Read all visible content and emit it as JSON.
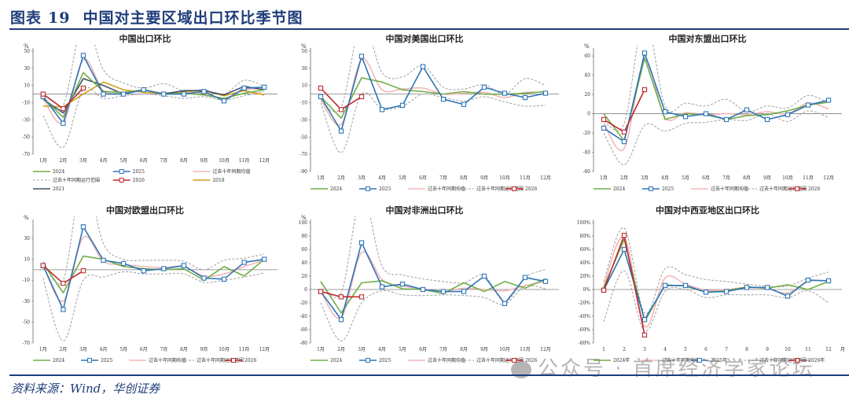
{
  "figure": {
    "label": "图表",
    "number": "19",
    "title": "中国对主要区域出口环比季节图",
    "source": "资料来源：Wind，华创证券",
    "watermark": "公众号 · 首席经济学家论坛"
  },
  "colors": {
    "y2024": "#70ad47",
    "y2025": "#2e75b6",
    "avg10": "#f4b6b6",
    "range10": "#a6a6a6",
    "y2026": "#c0282d",
    "y2018": "#d4a017",
    "y2021": "#44546a",
    "title_blue": "#1f3d7a"
  },
  "chart_data": [
    {
      "type": "line",
      "title": "中国出口环比",
      "unit": "%",
      "xlabel": "",
      "ylabel": "%",
      "categories": [
        "1月",
        "2月",
        "3月",
        "4月",
        "5月",
        "6月",
        "7月",
        "8月",
        "9月",
        "10月",
        "11月",
        "12月"
      ],
      "ylim": [
        -70,
        50
      ],
      "yticks": [
        50,
        30,
        10,
        -10,
        -30,
        -50,
        -70
      ],
      "ytick_labels": [
        "50",
        "30",
        "10",
        "-10",
        "-30",
        "-50",
        "-70"
      ],
      "legend_cols": 3,
      "series": [
        {
          "name": "2024",
          "key": "y2024",
          "marker": false,
          "values": [
            -5,
            -27,
            25,
            3,
            2,
            5,
            0,
            1,
            -1,
            -5,
            1,
            5
          ]
        },
        {
          "name": "2025",
          "key": "y2025",
          "marker": true,
          "values": [
            -3,
            -34,
            45,
            0,
            0,
            5,
            0,
            0,
            3,
            -8,
            7,
            8
          ]
        },
        {
          "name": "过去十年同期均值",
          "key": "avg10",
          "marker": false,
          "smooth": true,
          "values": [
            -5,
            -33,
            40,
            4,
            2,
            4,
            1,
            2,
            1,
            -5,
            5,
            6
          ]
        },
        {
          "name": "过去十年同期运行范围",
          "key": "range10",
          "dashed": true,
          "smooth": true,
          "upper": [
            -3,
            -13,
            85,
            28,
            13,
            7,
            12,
            4,
            5,
            0,
            16,
            9
          ],
          "lower": [
            -25,
            -62,
            5,
            -5,
            -2,
            0,
            -2,
            -5,
            -3,
            -7,
            -2,
            3
          ]
        },
        {
          "name": "2026",
          "key": "y2026",
          "marker": true,
          "values": [
            0,
            -17,
            7
          ]
        },
        {
          "name": "2018",
          "key": "y2018",
          "marker": false,
          "values": [
            -14,
            -15,
            0,
            14,
            5,
            2,
            1,
            3,
            4,
            -2,
            4,
            -1
          ]
        },
        {
          "name": "2021",
          "key": "y2021",
          "marker": false,
          "values": [
            -6,
            -22,
            18,
            10,
            0,
            5,
            0,
            4,
            4,
            -1,
            9,
            5
          ]
        }
      ]
    },
    {
      "type": "line",
      "title": "中国对美国出口环比",
      "unit": "%",
      "xlabel": "",
      "ylabel": "%",
      "categories": [
        "1月",
        "2月",
        "3月",
        "4月",
        "5月",
        "6月",
        "7月",
        "8月",
        "9月",
        "10月",
        "11月",
        "12月"
      ],
      "ylim": [
        -90,
        50
      ],
      "yticks": [
        50,
        30,
        10,
        -10,
        -30,
        -50,
        -70,
        -90
      ],
      "ytick_labels": [
        "50",
        "30",
        "10",
        "-10",
        "-30",
        "-50",
        "-70",
        "-90"
      ],
      "legend_cols": 5,
      "series": [
        {
          "name": "2024",
          "key": "y2024",
          "marker": false,
          "values": [
            -3,
            -28,
            19,
            14,
            5,
            3,
            0,
            3,
            0,
            0,
            1,
            3
          ]
        },
        {
          "name": "2025",
          "key": "y2025",
          "marker": true,
          "values": [
            -3,
            -43,
            44,
            -18,
            -13,
            32,
            -6,
            -12,
            8,
            1,
            -4,
            1
          ]
        },
        {
          "name": "过去十年同期均值",
          "key": "avg10",
          "marker": false,
          "smooth": true,
          "values": [
            -6,
            -35,
            40,
            5,
            6,
            7,
            0,
            1,
            2,
            -4,
            2,
            2
          ]
        },
        {
          "name": "过去十年同期运行范围",
          "key": "range10",
          "dashed": true,
          "smooth": true,
          "upper": [
            -8,
            -15,
            85,
            25,
            20,
            33,
            8,
            6,
            11,
            0,
            18,
            10
          ],
          "lower": [
            -10,
            -68,
            0,
            -17,
            -14,
            0,
            -4,
            -8,
            -3,
            -9,
            -14,
            -13
          ]
        },
        {
          "name": "2026",
          "key": "y2026",
          "marker": true,
          "values": [
            7,
            -18,
            -3
          ]
        }
      ]
    },
    {
      "type": "line",
      "title": "中国对东盟出口环比",
      "unit": "%",
      "xlabel": "",
      "ylabel": "%",
      "categories": [
        "1月",
        "2月",
        "3月",
        "4月",
        "5月",
        "6月",
        "7月",
        "8月",
        "9月",
        "10月",
        "11月",
        "12月"
      ],
      "ylim": [
        -60,
        65
      ],
      "yticks": [
        60,
        40,
        20,
        0,
        -20,
        -40,
        -60
      ],
      "ytick_labels": [
        "60",
        "40",
        "20",
        "0",
        "-20",
        "-40",
        "-60"
      ],
      "legend_cols": 5,
      "series": [
        {
          "name": "2024",
          "key": "y2024",
          "marker": false,
          "values": [
            0,
            -28,
            58,
            -6,
            0,
            -1,
            -6,
            -2,
            -1,
            3,
            9,
            12
          ]
        },
        {
          "name": "2025",
          "key": "y2025",
          "marker": true,
          "values": [
            -15,
            -29,
            63,
            2,
            -3,
            0,
            -6,
            4,
            -6,
            -1,
            9,
            14
          ]
        },
        {
          "name": "过去十年同期均值",
          "key": "avg10",
          "marker": false,
          "smooth": true,
          "values": [
            -10,
            -36,
            55,
            -4,
            1,
            -1,
            0,
            -1,
            2,
            0,
            11,
            5
          ]
        },
        {
          "name": "过去十年同期运行范围",
          "key": "range10",
          "dashed": true,
          "smooth": true,
          "upper": [
            -8,
            -10,
            100,
            8,
            11,
            8,
            15,
            2,
            8,
            6,
            19,
            11
          ],
          "lower": [
            -20,
            -53,
            -12,
            -18,
            -10,
            -9,
            -6,
            -7,
            0,
            -8,
            3,
            -4
          ]
        },
        {
          "name": "2026",
          "key": "y2026",
          "marker": true,
          "values": [
            -6,
            -19,
            25
          ]
        }
      ]
    },
    {
      "type": "line",
      "title": "中国对欧盟出口环比",
      "unit": "%",
      "xlabel": "",
      "ylabel": "%",
      "categories": [
        "1月",
        "2月",
        "3月",
        "4月",
        "5月",
        "6月",
        "7月",
        "8月",
        "9月",
        "10月",
        "11月",
        "12月"
      ],
      "ylim": [
        -70,
        45
      ],
      "yticks": [
        30,
        10,
        -10,
        -30,
        -50,
        -70
      ],
      "ytick_labels": [
        "30",
        "10",
        "-10",
        "-30",
        "-50",
        "-70"
      ],
      "legend_cols": 5,
      "series": [
        {
          "name": "2024",
          "key": "y2024",
          "marker": false,
          "values": [
            6,
            -22,
            13,
            10,
            3,
            1,
            0,
            1,
            -10,
            3,
            -6,
            10
          ]
        },
        {
          "name": "2025",
          "key": "y2025",
          "marker": true,
          "values": [
            4,
            -38,
            41,
            9,
            6,
            -1,
            1,
            4,
            -8,
            -9,
            7,
            10
          ]
        },
        {
          "name": "过去十年同期均值",
          "key": "avg10",
          "marker": false,
          "smooth": true,
          "values": [
            5,
            -30,
            31,
            8,
            5,
            3,
            2,
            3,
            -6,
            -4,
            3,
            9
          ]
        },
        {
          "name": "过去十年同期运行范围",
          "key": "range10",
          "dashed": true,
          "smooth": true,
          "upper": [
            8,
            -10,
            90,
            25,
            10,
            9,
            9,
            8,
            0,
            9,
            11,
            15
          ],
          "lower": [
            -8,
            -68,
            -10,
            -7,
            -2,
            -4,
            -4,
            -4,
            -12,
            -10,
            -7,
            -3
          ]
        },
        {
          "name": "2026",
          "key": "y2026",
          "marker": true,
          "values": [
            4,
            -13,
            -1
          ]
        }
      ]
    },
    {
      "type": "line",
      "title": "中国对非洲出口环比",
      "unit": "%",
      "xlabel": "",
      "ylabel": "%",
      "categories": [
        "1月",
        "2月",
        "3月",
        "4月",
        "5月",
        "6月",
        "7月",
        "8月",
        "9月",
        "10月",
        "11月",
        "12月"
      ],
      "ylim": [
        -80,
        100
      ],
      "yticks": [
        100,
        80,
        60,
        40,
        20,
        0,
        -20,
        -40,
        -60,
        -80
      ],
      "ytick_labels": [
        "100",
        "80",
        "60",
        "40",
        "20",
        "0",
        "-20",
        "-40",
        "-60",
        "-80"
      ],
      "legend_cols": 5,
      "series": [
        {
          "name": "2024",
          "key": "y2024",
          "marker": false,
          "values": [
            12,
            -35,
            10,
            13,
            1,
            0,
            -6,
            10,
            -3,
            12,
            2,
            16
          ]
        },
        {
          "name": "2025",
          "key": "y2025",
          "marker": true,
          "values": [
            -3,
            -45,
            70,
            4,
            8,
            0,
            -3,
            -3,
            20,
            -21,
            18,
            12
          ]
        },
        {
          "name": "过去十年同期均值",
          "key": "avg10",
          "marker": false,
          "smooth": true,
          "values": [
            -3,
            -42,
            55,
            15,
            5,
            1,
            -3,
            2,
            0,
            -2,
            6,
            12
          ]
        },
        {
          "name": "过去十年同期运行范围",
          "key": "range10",
          "dashed": true,
          "smooth": true,
          "upper": [
            10,
            -5,
            140,
            35,
            22,
            16,
            12,
            10,
            21,
            -18,
            18,
            30
          ],
          "lower": [
            -20,
            -77,
            -20,
            -2,
            -8,
            -9,
            -8,
            -9,
            -12,
            -22,
            5,
            1
          ]
        },
        {
          "name": "2026",
          "key": "y2026",
          "marker": true,
          "values": [
            -3,
            -11,
            -11
          ]
        }
      ]
    },
    {
      "type": "line",
      "title": "中国对中西亚地区出口环比",
      "unit": "%",
      "xlabel": "月",
      "ylabel": "",
      "categories": [
        "1",
        "2",
        "3",
        "4",
        "5",
        "6",
        "7",
        "8",
        "9",
        "10",
        "11",
        "12"
      ],
      "ylim": [
        -80,
        100
      ],
      "yticks": [
        100,
        80,
        60,
        40,
        20,
        0,
        -20,
        -40,
        -60,
        -80
      ],
      "ytick_labels": [
        "100%",
        "80%",
        "60%",
        "40%",
        "20%",
        "0%",
        "-20%",
        "-40%",
        "-60%",
        "-80%"
      ],
      "legend_cols": 5,
      "series": [
        {
          "name": "2024年",
          "key": "y2024",
          "marker": false,
          "values": [
            3,
            75,
            -48,
            7,
            5,
            -4,
            -2,
            4,
            2,
            7,
            0,
            12
          ]
        },
        {
          "name": "过去十年同期均值",
          "key": "avg10",
          "marker": false,
          "smooth": true,
          "values": [
            5,
            78,
            -55,
            17,
            8,
            -1,
            0,
            3,
            1,
            -5,
            12,
            13
          ]
        },
        {
          "name": "2025年",
          "key": "y2025",
          "marker": true,
          "values": [
            -1,
            60,
            -45,
            6,
            6,
            -4,
            -3,
            3,
            3,
            -10,
            14,
            13
          ]
        },
        {
          "name": "过去十年同期运行范围",
          "key": "range10",
          "dashed": true,
          "smooth": true,
          "upper": [
            12,
            92,
            -35,
            31,
            22,
            15,
            12,
            8,
            5,
            5,
            17,
            26
          ],
          "lower": [
            -48,
            28,
            -62,
            -3,
            0,
            -12,
            -8,
            -8,
            -8,
            -12,
            -2,
            -20
          ]
        },
        {
          "name": "2026年",
          "key": "y2026",
          "marker": true,
          "values": [
            -1,
            81,
            -68
          ]
        }
      ]
    }
  ]
}
